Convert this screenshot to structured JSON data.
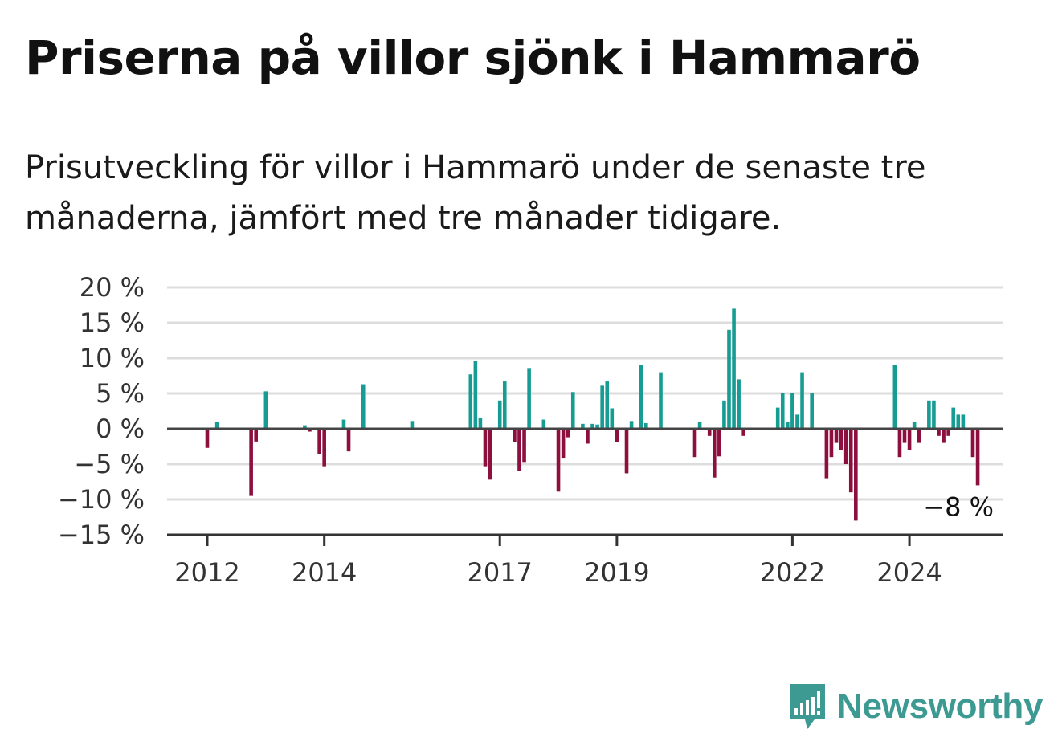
{
  "title": "Priserna på villor sjönk i Hammarö",
  "subtitle": "Prisutveckling för villor i Hammarö under de senaste tre månaderna, jämfört med tre månader tidigare.",
  "brand": {
    "name": "Newsworthy"
  },
  "colors": {
    "positive": "#179c93",
    "negative": "#8c0f3e",
    "gridline": "#dddddd",
    "zero_line": "#444444",
    "brand": "#3c9a93"
  },
  "chart_data": {
    "type": "bar",
    "x_unit": "month",
    "y_unit": "%",
    "ylim": [
      -15,
      20
    ],
    "y_ticks": [
      20,
      15,
      10,
      5,
      0,
      -5,
      -10,
      -15
    ],
    "y_tick_labels": [
      "20 %",
      "15 %",
      "10 %",
      "5 %",
      "0 %",
      "−5 %",
      "−10 %",
      "−15 %"
    ],
    "x_tick_labels": [
      "2012",
      "2014",
      "2017",
      "2019",
      "2022",
      "2024"
    ],
    "x_tick_dates": [
      "2012-01",
      "2014-01",
      "2017-01",
      "2019-01",
      "2022-01",
      "2024-01"
    ],
    "grid": true,
    "last_value_label": "−8 %",
    "points": [
      [
        "2012-01",
        -2.7
      ],
      [
        "2012-03",
        1.0
      ],
      [
        "2012-10",
        -9.5
      ],
      [
        "2012-11",
        -1.8
      ],
      [
        "2013-01",
        5.3
      ],
      [
        "2013-09",
        0.5
      ],
      [
        "2013-10",
        -0.4
      ],
      [
        "2013-12",
        -3.6
      ],
      [
        "2014-01",
        -5.3
      ],
      [
        "2014-05",
        1.3
      ],
      [
        "2014-06",
        -3.2
      ],
      [
        "2014-09",
        6.3
      ],
      [
        "2015-07",
        1.1
      ],
      [
        "2016-07",
        7.7
      ],
      [
        "2016-08",
        9.6
      ],
      [
        "2016-09",
        1.6
      ],
      [
        "2016-10",
        -5.3
      ],
      [
        "2016-11",
        -7.2
      ],
      [
        "2017-01",
        4.0
      ],
      [
        "2017-02",
        6.7
      ],
      [
        "2017-04",
        -1.9
      ],
      [
        "2017-05",
        -6.0
      ],
      [
        "2017-06",
        -4.7
      ],
      [
        "2017-07",
        8.6
      ],
      [
        "2017-10",
        1.3
      ],
      [
        "2018-01",
        -8.9
      ],
      [
        "2018-02",
        -4.1
      ],
      [
        "2018-03",
        -1.2
      ],
      [
        "2018-04",
        5.2
      ],
      [
        "2018-06",
        0.7
      ],
      [
        "2018-07",
        -2.1
      ],
      [
        "2018-08",
        0.7
      ],
      [
        "2018-09",
        0.6
      ],
      [
        "2018-10",
        6.1
      ],
      [
        "2018-11",
        6.7
      ],
      [
        "2018-12",
        2.9
      ],
      [
        "2019-01",
        -1.9
      ],
      [
        "2019-03",
        -6.3
      ],
      [
        "2019-04",
        1.1
      ],
      [
        "2019-06",
        9.0
      ],
      [
        "2019-07",
        0.8
      ],
      [
        "2019-10",
        8.0
      ],
      [
        "2020-05",
        -4.0
      ],
      [
        "2020-06",
        1.0
      ],
      [
        "2020-08",
        -1.0
      ],
      [
        "2020-09",
        -6.9
      ],
      [
        "2020-10",
        -3.9
      ],
      [
        "2020-11",
        4.0
      ],
      [
        "2020-12",
        14.0
      ],
      [
        "2021-01",
        17.0
      ],
      [
        "2021-02",
        7.0
      ],
      [
        "2021-03",
        -1.0
      ],
      [
        "2021-10",
        3.0
      ],
      [
        "2021-11",
        5.0
      ],
      [
        "2021-12",
        1.0
      ],
      [
        "2022-01",
        5.0
      ],
      [
        "2022-02",
        2.0
      ],
      [
        "2022-03",
        8.0
      ],
      [
        "2022-05",
        5.0
      ],
      [
        "2022-08",
        -7.0
      ],
      [
        "2022-09",
        -4.0
      ],
      [
        "2022-10",
        -2.0
      ],
      [
        "2022-11",
        -3.0
      ],
      [
        "2022-12",
        -5.0
      ],
      [
        "2023-01",
        -9.0
      ],
      [
        "2023-02",
        -13.0
      ],
      [
        "2023-10",
        9.0
      ],
      [
        "2023-11",
        -4.0
      ],
      [
        "2023-12",
        -2.0
      ],
      [
        "2024-01",
        -3.0
      ],
      [
        "2024-02",
        1.0
      ],
      [
        "2024-03",
        -2.0
      ],
      [
        "2024-05",
        4.0
      ],
      [
        "2024-06",
        4.0
      ],
      [
        "2024-07",
        -1.0
      ],
      [
        "2024-08",
        -2.0
      ],
      [
        "2024-09",
        -1.0
      ],
      [
        "2024-10",
        3.0
      ],
      [
        "2024-11",
        2.0
      ],
      [
        "2024-12",
        2.0
      ],
      [
        "2025-02",
        -4.0
      ],
      [
        "2025-03",
        -8.0
      ]
    ]
  }
}
